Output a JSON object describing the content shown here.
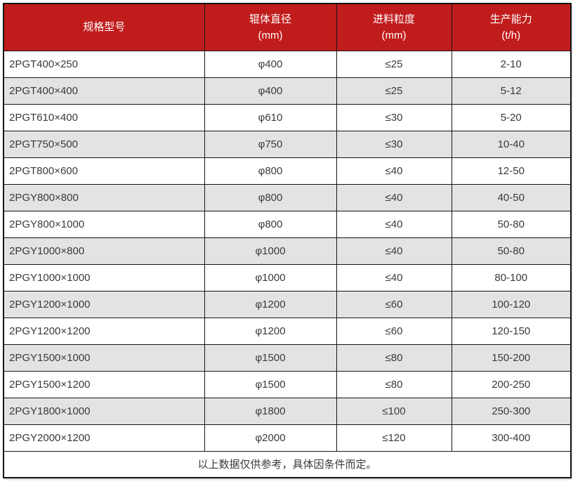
{
  "colors": {
    "header_bg": "#c11c1c",
    "header_text": "#ffffff",
    "row_bg": "#ffffff",
    "row_alt_bg": "#e3e3e3",
    "body_text": "#3a3a3a",
    "border": "#151515"
  },
  "table": {
    "columns": [
      {
        "label": "规格型号",
        "unit": ""
      },
      {
        "label": "辊体直径",
        "unit": "(mm)"
      },
      {
        "label": "进料粒度",
        "unit": "(mm)"
      },
      {
        "label": "生产能力",
        "unit": "(t/h)"
      }
    ],
    "rows": [
      {
        "model": "2PGT400×250",
        "roller_diameter": "φ400",
        "feed_size": "≤25",
        "capacity": "2-10"
      },
      {
        "model": "2PGT400×400",
        "roller_diameter": "φ400",
        "feed_size": "≤25",
        "capacity": "5-12"
      },
      {
        "model": "2PGT610×400",
        "roller_diameter": "φ610",
        "feed_size": "≤30",
        "capacity": "5-20"
      },
      {
        "model": "2PGT750×500",
        "roller_diameter": "φ750",
        "feed_size": "≤30",
        "capacity": "10-40"
      },
      {
        "model": "2PGT800×600",
        "roller_diameter": "φ800",
        "feed_size": "≤40",
        "capacity": "12-50"
      },
      {
        "model": "2PGY800×800",
        "roller_diameter": "φ800",
        "feed_size": "≤40",
        "capacity": "40-50"
      },
      {
        "model": "2PGY800×1000",
        "roller_diameter": "φ800",
        "feed_size": "≤40",
        "capacity": "50-80"
      },
      {
        "model": "2PGY1000×800",
        "roller_diameter": "φ1000",
        "feed_size": "≤40",
        "capacity": "50-80"
      },
      {
        "model": "2PGY1000×1000",
        "roller_diameter": "φ1000",
        "feed_size": "≤40",
        "capacity": "80-100"
      },
      {
        "model": "2PGY1200×1000",
        "roller_diameter": "φ1200",
        "feed_size": "≤60",
        "capacity": "100-120"
      },
      {
        "model": "2PGY1200×1200",
        "roller_diameter": "φ1200",
        "feed_size": "≤60",
        "capacity": "120-150"
      },
      {
        "model": "2PGY1500×1000",
        "roller_diameter": "φ1500",
        "feed_size": "≤80",
        "capacity": "150-200"
      },
      {
        "model": "2PGY1500×1200",
        "roller_diameter": "φ1500",
        "feed_size": "≤80",
        "capacity": "200-250"
      },
      {
        "model": "2PGY1800×1000",
        "roller_diameter": "φ1800",
        "feed_size": "≤100",
        "capacity": "250-300"
      },
      {
        "model": "2PGY2000×1200",
        "roller_diameter": "φ2000",
        "feed_size": "≤120",
        "capacity": "300-400"
      }
    ],
    "footer_note": "以上数据仅供参考，具体因条件而定。"
  }
}
